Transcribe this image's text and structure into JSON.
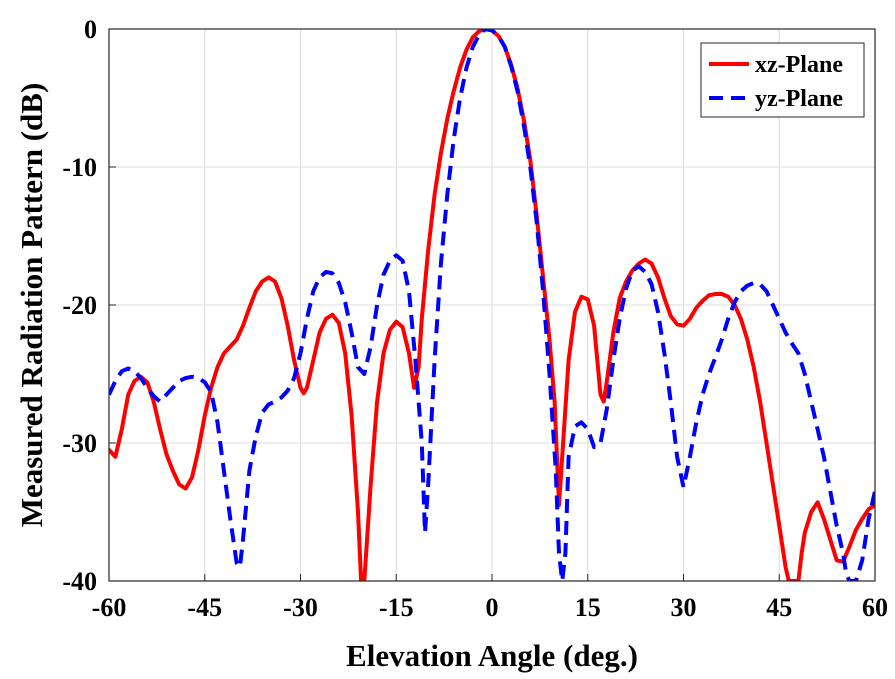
{
  "chart_data": {
    "type": "line",
    "xlabel": "Elevation Angle (deg.)",
    "ylabel": "Measured Radiation Pattern (dB)",
    "xlim": [
      -60,
      60
    ],
    "ylim": [
      -40,
      0
    ],
    "xticks": [
      "-60",
      "-45",
      "-30",
      "-15",
      "0",
      "15",
      "30",
      "45",
      "60"
    ],
    "xtick_values": [
      -60,
      -45,
      -30,
      -15,
      0,
      15,
      30,
      45,
      60
    ],
    "yticks": [
      "0",
      "-10",
      "-20",
      "-30",
      "-40"
    ],
    "ytick_values": [
      0,
      -10,
      -20,
      -30,
      -40
    ],
    "grid": true,
    "legend_position": "top-right",
    "series": [
      {
        "name": "xz-Plane",
        "color": "#ff0000",
        "style": "solid",
        "points": [
          [
            -60,
            -30.5
          ],
          [
            -59,
            -31
          ],
          [
            -58,
            -29
          ],
          [
            -57,
            -26.5
          ],
          [
            -56,
            -25.5
          ],
          [
            -55,
            -25.2
          ],
          [
            -54,
            -25.6
          ],
          [
            -53,
            -27
          ],
          [
            -52,
            -29
          ],
          [
            -51,
            -30.8
          ],
          [
            -50,
            -32
          ],
          [
            -49,
            -33
          ],
          [
            -48,
            -33.3
          ],
          [
            -47,
            -32.5
          ],
          [
            -46,
            -30.5
          ],
          [
            -45,
            -28
          ],
          [
            -44,
            -26
          ],
          [
            -43,
            -24.5
          ],
          [
            -42,
            -23.5
          ],
          [
            -41,
            -23
          ],
          [
            -40,
            -22.5
          ],
          [
            -39,
            -21.5
          ],
          [
            -38,
            -20.2
          ],
          [
            -37,
            -19
          ],
          [
            -36,
            -18.3
          ],
          [
            -35,
            -18
          ],
          [
            -34,
            -18.3
          ],
          [
            -33,
            -19.5
          ],
          [
            -32,
            -21.5
          ],
          [
            -31,
            -24
          ],
          [
            -30,
            -26
          ],
          [
            -29.5,
            -26.4
          ],
          [
            -29,
            -26
          ],
          [
            -28,
            -24
          ],
          [
            -27,
            -22
          ],
          [
            -26,
            -21
          ],
          [
            -25,
            -20.7
          ],
          [
            -24,
            -21.3
          ],
          [
            -23,
            -23.5
          ],
          [
            -22,
            -28
          ],
          [
            -21,
            -35
          ],
          [
            -20.5,
            -40
          ],
          [
            -20,
            -40
          ],
          [
            -19,
            -33
          ],
          [
            -18,
            -27
          ],
          [
            -17,
            -23.5
          ],
          [
            -16,
            -21.8
          ],
          [
            -15,
            -21.2
          ],
          [
            -14,
            -21.6
          ],
          [
            -13,
            -23.5
          ],
          [
            -12.2,
            -26
          ],
          [
            -11.5,
            -24.5
          ],
          [
            -11,
            -21
          ],
          [
            -10,
            -16
          ],
          [
            -9,
            -12
          ],
          [
            -8,
            -9
          ],
          [
            -7,
            -6.5
          ],
          [
            -6,
            -4.5
          ],
          [
            -5,
            -2.8
          ],
          [
            -4,
            -1.5
          ],
          [
            -3,
            -0.6
          ],
          [
            -2,
            -0.15
          ],
          [
            -1,
            0
          ],
          [
            0,
            -0.1
          ],
          [
            1,
            -0.5
          ],
          [
            2,
            -1.3
          ],
          [
            3,
            -2.6
          ],
          [
            4,
            -4.3
          ],
          [
            5,
            -6.6
          ],
          [
            6,
            -9.5
          ],
          [
            7,
            -13.5
          ],
          [
            8,
            -18
          ],
          [
            9,
            -22.5
          ],
          [
            9.8,
            -27
          ],
          [
            10.5,
            -34.5
          ],
          [
            11,
            -31
          ],
          [
            12,
            -24
          ],
          [
            13,
            -20.5
          ],
          [
            14,
            -19.4
          ],
          [
            15,
            -19.6
          ],
          [
            16,
            -21.5
          ],
          [
            16.5,
            -24
          ],
          [
            17,
            -26.5
          ],
          [
            17.5,
            -27
          ],
          [
            18,
            -25.5
          ],
          [
            19,
            -22
          ],
          [
            20,
            -19.5
          ],
          [
            21,
            -18.3
          ],
          [
            22,
            -17.5
          ],
          [
            23,
            -17
          ],
          [
            24,
            -16.7
          ],
          [
            25,
            -17
          ],
          [
            26,
            -18
          ],
          [
            27,
            -19.5
          ],
          [
            28,
            -20.8
          ],
          [
            29,
            -21.4
          ],
          [
            30,
            -21.5
          ],
          [
            31,
            -21
          ],
          [
            32,
            -20.2
          ],
          [
            33,
            -19.7
          ],
          [
            34,
            -19.3
          ],
          [
            35,
            -19.2
          ],
          [
            36,
            -19.2
          ],
          [
            37,
            -19.4
          ],
          [
            38,
            -20
          ],
          [
            39,
            -21
          ],
          [
            40,
            -22.5
          ],
          [
            41,
            -24.5
          ],
          [
            42,
            -27
          ],
          [
            43,
            -30
          ],
          [
            44,
            -33
          ],
          [
            45,
            -36
          ],
          [
            46,
            -39
          ],
          [
            46.5,
            -40
          ],
          [
            48,
            -40
          ],
          [
            48.5,
            -38
          ],
          [
            49,
            -36.5
          ],
          [
            50,
            -35
          ],
          [
            51,
            -34.3
          ],
          [
            52,
            -35.5
          ],
          [
            53,
            -37
          ],
          [
            54,
            -38.5
          ],
          [
            55,
            -38.6
          ],
          [
            56,
            -37.5
          ],
          [
            57,
            -36.3
          ],
          [
            58,
            -35.5
          ],
          [
            59,
            -34.8
          ],
          [
            60,
            -34.5
          ]
        ]
      },
      {
        "name": "yz-Plane",
        "color": "#0000ff",
        "style": "dashed",
        "points": [
          [
            -60,
            -26.5
          ],
          [
            -59,
            -25.5
          ],
          [
            -58,
            -24.8
          ],
          [
            -57,
            -24.6
          ],
          [
            -56,
            -24.8
          ],
          [
            -55,
            -25.3
          ],
          [
            -54,
            -26
          ],
          [
            -53,
            -26.6
          ],
          [
            -52,
            -27
          ],
          [
            -51,
            -26.5
          ],
          [
            -50,
            -26
          ],
          [
            -49,
            -25.5
          ],
          [
            -48,
            -25.3
          ],
          [
            -47,
            -25.2
          ],
          [
            -46,
            -25.3
          ],
          [
            -45,
            -25.6
          ],
          [
            -44,
            -26.3
          ],
          [
            -43,
            -28.5
          ],
          [
            -42,
            -32
          ],
          [
            -41,
            -35.5
          ],
          [
            -40,
            -38.7
          ],
          [
            -39.5,
            -39
          ],
          [
            -39,
            -37
          ],
          [
            -38,
            -32
          ],
          [
            -37,
            -29.5
          ],
          [
            -36,
            -27.8
          ],
          [
            -35,
            -27.2
          ],
          [
            -34,
            -27
          ],
          [
            -33,
            -26.7
          ],
          [
            -32,
            -26.2
          ],
          [
            -31,
            -25.3
          ],
          [
            -30,
            -23.5
          ],
          [
            -29,
            -21
          ],
          [
            -28,
            -19
          ],
          [
            -27,
            -18
          ],
          [
            -26,
            -17.6
          ],
          [
            -25,
            -17.7
          ],
          [
            -24,
            -18.4
          ],
          [
            -23,
            -19.8
          ],
          [
            -22,
            -22
          ],
          [
            -21,
            -24.5
          ],
          [
            -20,
            -25
          ],
          [
            -19,
            -23
          ],
          [
            -18,
            -20
          ],
          [
            -17,
            -17.8
          ],
          [
            -16,
            -16.8
          ],
          [
            -15,
            -16.4
          ],
          [
            -14,
            -16.8
          ],
          [
            -13,
            -19
          ],
          [
            -12,
            -24
          ],
          [
            -11,
            -30
          ],
          [
            -10.5,
            -36.5
          ],
          [
            -10,
            -33
          ],
          [
            -9,
            -24
          ],
          [
            -8,
            -17
          ],
          [
            -7,
            -12
          ],
          [
            -6,
            -8
          ],
          [
            -5,
            -5
          ],
          [
            -4,
            -2.8
          ],
          [
            -3,
            -1.3
          ],
          [
            -2,
            -0.4
          ],
          [
            -1,
            0
          ],
          [
            0,
            -0.1
          ],
          [
            1,
            -0.5
          ],
          [
            2,
            -1.3
          ],
          [
            3,
            -2.7
          ],
          [
            4,
            -4.5
          ],
          [
            5,
            -7
          ],
          [
            6,
            -10
          ],
          [
            7,
            -14
          ],
          [
            8,
            -19
          ],
          [
            9,
            -25
          ],
          [
            10,
            -32
          ],
          [
            10.5,
            -38
          ],
          [
            11,
            -40
          ],
          [
            11.5,
            -38
          ],
          [
            12,
            -31
          ],
          [
            13,
            -28.8
          ],
          [
            14,
            -28.5
          ],
          [
            15,
            -29
          ],
          [
            16,
            -30.3
          ],
          [
            17,
            -30
          ],
          [
            18,
            -27.5
          ],
          [
            19,
            -24
          ],
          [
            20,
            -21
          ],
          [
            21,
            -18.8
          ],
          [
            22,
            -17.5
          ],
          [
            23,
            -17.2
          ],
          [
            24,
            -17.6
          ],
          [
            25,
            -18.5
          ],
          [
            26,
            -20.5
          ],
          [
            27,
            -23.5
          ],
          [
            28,
            -27
          ],
          [
            29,
            -31
          ],
          [
            30,
            -33.2
          ],
          [
            31,
            -31
          ],
          [
            32,
            -28.5
          ],
          [
            33,
            -26.5
          ],
          [
            34,
            -25
          ],
          [
            35,
            -23.8
          ],
          [
            36,
            -22.5
          ],
          [
            37,
            -21
          ],
          [
            38,
            -19.8
          ],
          [
            39,
            -19
          ],
          [
            40,
            -18.6
          ],
          [
            41,
            -18.4
          ],
          [
            42,
            -18.5
          ],
          [
            43,
            -19
          ],
          [
            44,
            -20
          ],
          [
            45,
            -21
          ],
          [
            46,
            -22
          ],
          [
            47,
            -22.8
          ],
          [
            48,
            -23.5
          ],
          [
            49,
            -25
          ],
          [
            50,
            -27
          ],
          [
            51,
            -29
          ],
          [
            52,
            -31
          ],
          [
            53,
            -33.5
          ],
          [
            54,
            -36
          ],
          [
            55,
            -38
          ],
          [
            55.5,
            -39.5
          ],
          [
            56,
            -40
          ],
          [
            57,
            -40
          ],
          [
            58,
            -38.5
          ],
          [
            59,
            -35.5
          ],
          [
            60,
            -33.5
          ]
        ]
      }
    ]
  }
}
